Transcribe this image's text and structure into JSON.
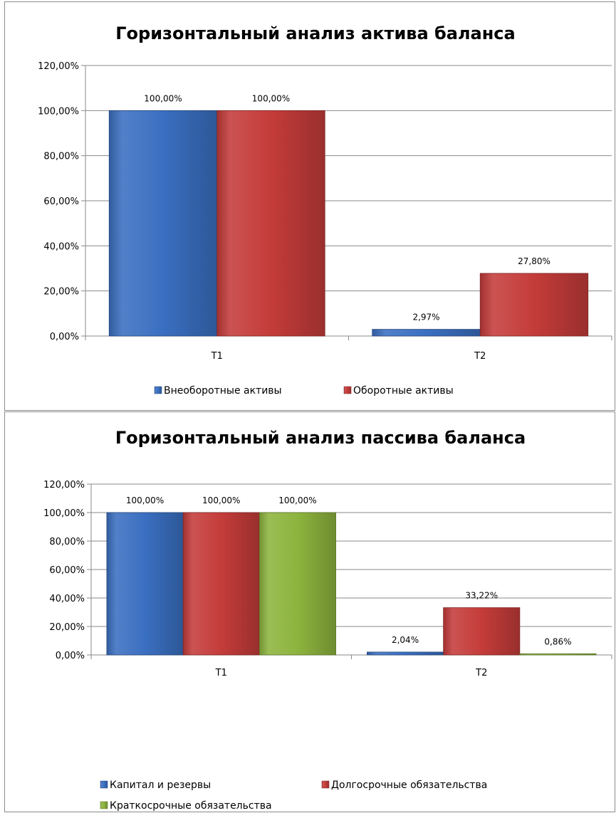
{
  "chart_data": [
    {
      "type": "bar",
      "title": "Горизонтальный  анализ  актива  баланса",
      "categories": [
        "Т1",
        "Т2"
      ],
      "series": [
        {
          "name": "Внеоборотные  активы",
          "values": [
            100.0,
            2.97
          ],
          "labels": [
            "100,00%",
            "2,97%"
          ],
          "color": "#3a6fc1"
        },
        {
          "name": "Оборотные активы",
          "values": [
            100.0,
            27.8
          ],
          "labels": [
            "100,00%",
            "27,80%"
          ],
          "color": "#c43c3a"
        }
      ],
      "ylim": [
        0,
        120
      ],
      "yticks": [
        "0,00%",
        "20,00%",
        "40,00%",
        "60,00%",
        "80,00%",
        "100,00%",
        "120,00%"
      ],
      "grid": true,
      "legend_position": "bottom"
    },
    {
      "type": "bar",
      "title": "Горизонтальный анализ пассива баланса",
      "categories": [
        "Т1",
        "Т2"
      ],
      "series": [
        {
          "name": "Капитал и резервы",
          "values": [
            100.0,
            2.04
          ],
          "labels": [
            "100,00%",
            "2,04%"
          ],
          "color": "#3a6fc1"
        },
        {
          "name": "Долгосрочные обязательства",
          "values": [
            100.0,
            33.22
          ],
          "labels": [
            "100,00%",
            "33,22%"
          ],
          "color": "#c43c3a"
        },
        {
          "name": "Краткосрочные обязательства",
          "values": [
            100.0,
            0.86
          ],
          "labels": [
            "100,00%",
            "0,86%"
          ],
          "color": "#8db43e"
        }
      ],
      "ylim": [
        0,
        120
      ],
      "yticks": [
        "0,00%",
        "20,00%",
        "40,00%",
        "60,00%",
        "80,00%",
        "100,00%",
        "120,00%"
      ],
      "grid": true,
      "legend_position": "bottom"
    }
  ]
}
